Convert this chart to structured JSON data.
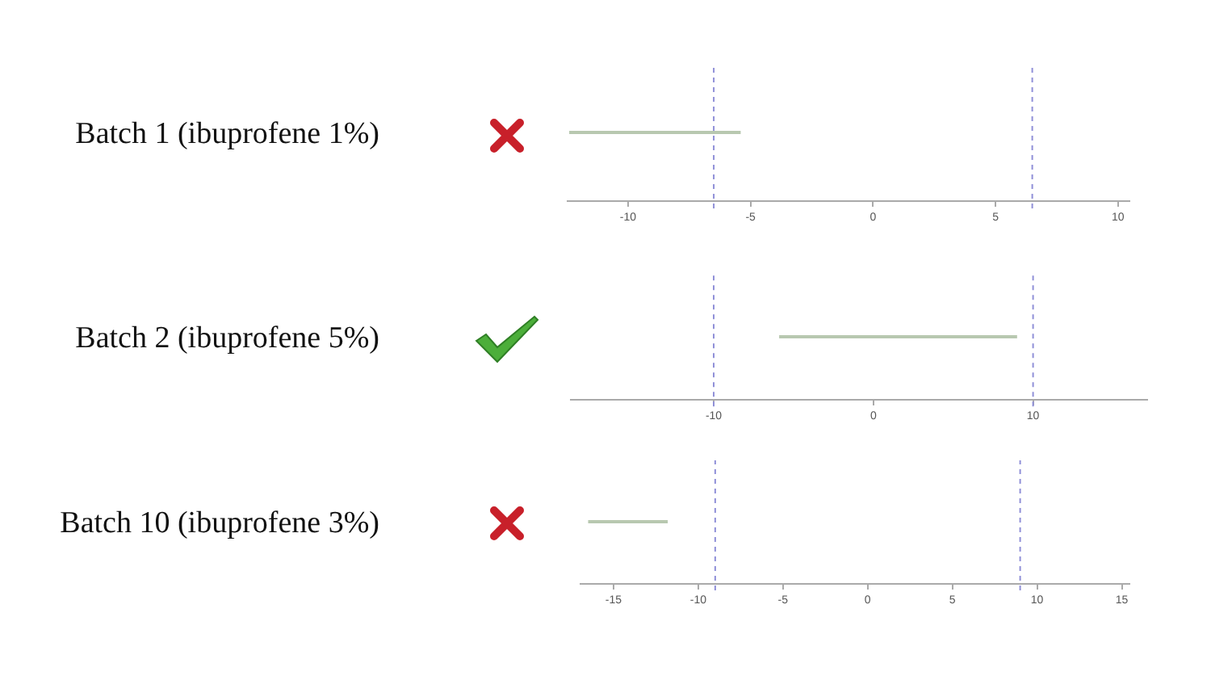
{
  "chart_data": [
    {
      "type": "bar",
      "orientation": "horizontal",
      "categories": [
        "Batch 1 (ibuprofene 1%)"
      ],
      "base": [
        -12.4
      ],
      "values": [
        7.0
      ],
      "color": "#b8c8b0",
      "xlim": [
        -12.5,
        10.5
      ],
      "xticks": [
        -10,
        -5,
        0,
        5,
        10
      ],
      "ref_lines": [
        {
          "axis": "x",
          "value": -6.5,
          "color": "#9090d8",
          "line_style": "dotted"
        },
        {
          "axis": "x",
          "value": 6.5,
          "color": "#9090d8",
          "line_style": "dotted"
        }
      ]
    },
    {
      "type": "bar",
      "orientation": "horizontal",
      "categories": [
        "Batch 2 (ibuprofene 5%)"
      ],
      "base": [
        -5.9
      ],
      "values": [
        14.9
      ],
      "color": "#b8c8b0",
      "xlim": [
        -19,
        17.2
      ],
      "xticks": [
        -10,
        0,
        10
      ],
      "ref_lines": [
        {
          "axis": "x",
          "value": -10,
          "color": "#9090d8",
          "line_style": "dotted"
        },
        {
          "axis": "x",
          "value": 10,
          "color": "#9090d8",
          "line_style": "dotted"
        }
      ]
    },
    {
      "type": "bar",
      "orientation": "horizontal",
      "categories": [
        "Batch 10 (ibuprofene 3%)"
      ],
      "base": [
        -16.5
      ],
      "values": [
        4.7
      ],
      "color": "#b8c8b0",
      "xlim": [
        -17,
        15.5
      ],
      "xticks": [
        -15,
        -10,
        -5,
        0,
        5,
        10,
        15
      ],
      "ref_lines": [
        {
          "axis": "x",
          "value": -9,
          "color": "#9090d8",
          "line_style": "dotted"
        },
        {
          "axis": "x",
          "value": 9,
          "color": "#9090d8",
          "line_style": "dotted"
        }
      ]
    }
  ]
}
